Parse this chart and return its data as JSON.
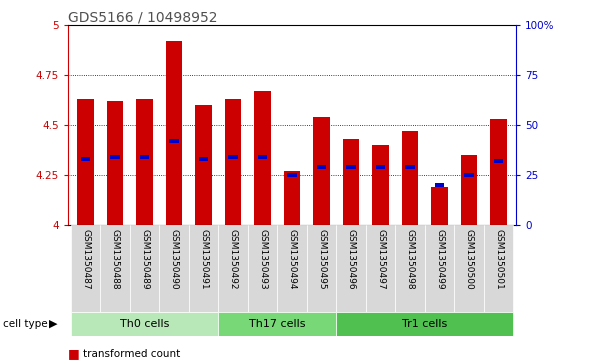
{
  "title": "GDS5166 / 10498952",
  "samples": [
    "GSM1350487",
    "GSM1350488",
    "GSM1350489",
    "GSM1350490",
    "GSM1350491",
    "GSM1350492",
    "GSM1350493",
    "GSM1350494",
    "GSM1350495",
    "GSM1350496",
    "GSM1350497",
    "GSM1350498",
    "GSM1350499",
    "GSM1350500",
    "GSM1350501"
  ],
  "red_values": [
    4.63,
    4.62,
    4.63,
    4.92,
    4.6,
    4.63,
    4.67,
    4.27,
    4.54,
    4.43,
    4.4,
    4.47,
    4.19,
    4.35,
    4.53
  ],
  "blue_values": [
    4.33,
    4.34,
    4.34,
    4.42,
    4.33,
    4.34,
    4.34,
    4.25,
    4.29,
    4.29,
    4.29,
    4.29,
    4.2,
    4.25,
    4.32
  ],
  "y_min": 4.0,
  "y_max": 5.0,
  "y_ticks": [
    4.0,
    4.25,
    4.5,
    4.75,
    5.0
  ],
  "y2_ticks": [
    0,
    25,
    50,
    75,
    100
  ],
  "cell_groups": [
    {
      "label": "Th0 cells",
      "start": 0,
      "end": 4,
      "color": "#b8e8b8"
    },
    {
      "label": "Th17 cells",
      "start": 5,
      "end": 8,
      "color": "#78d878"
    },
    {
      "label": "Tr1 cells",
      "start": 9,
      "end": 14,
      "color": "#50c050"
    }
  ],
  "bar_color": "#cc0000",
  "blue_color": "#0000cc",
  "plot_bg": "#ffffff",
  "title_color": "#505050",
  "tick_label_bg": "#d8d8d8"
}
